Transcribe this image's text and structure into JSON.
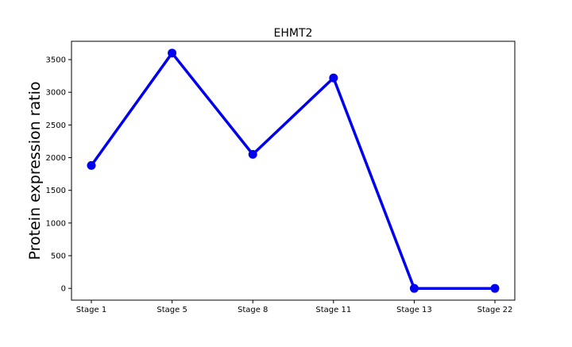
{
  "chart_data": {
    "type": "line",
    "title": "EHMT2",
    "xlabel": "",
    "ylabel": "Protein expression ratio",
    "categories": [
      "Stage 1",
      "Stage 5",
      "Stage 8",
      "Stage 11",
      "Stage 13",
      "Stage 22"
    ],
    "series": [
      {
        "values": [
          1880,
          3600,
          2050,
          3220,
          0,
          0
        ],
        "color": "#0000ee"
      }
    ],
    "ylim": [
      -180,
      3780
    ],
    "yticks": [
      0,
      500,
      1000,
      1500,
      2000,
      2500,
      3000,
      3500
    ],
    "grid": false,
    "legend": "none"
  }
}
